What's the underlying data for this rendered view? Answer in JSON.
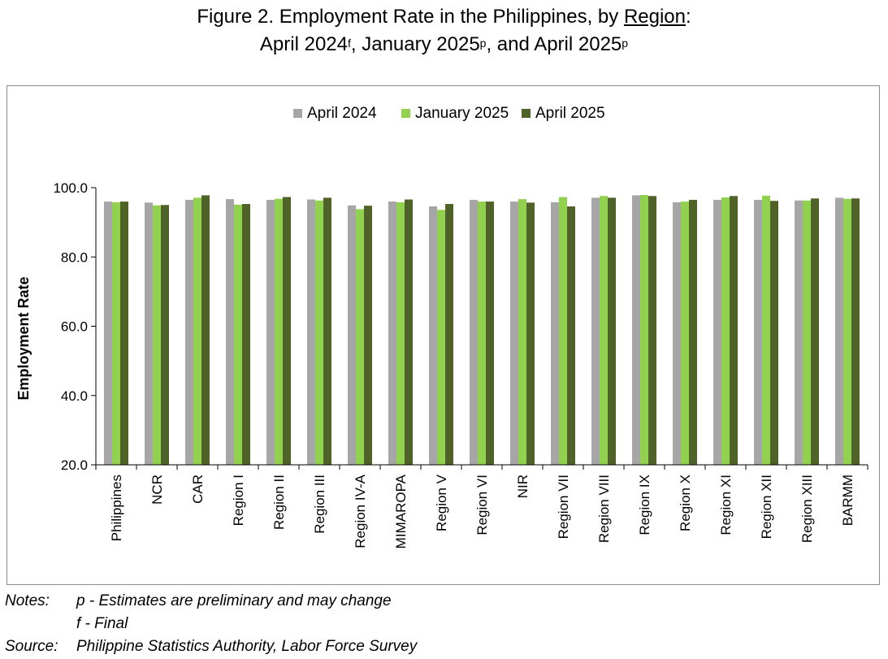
{
  "title": {
    "line1_prefix": "Figure 2. Employment Rate in the Philippines, by ",
    "line1_underlined": "Region",
    "line1_suffix": ":",
    "line2_part1": "April 2024",
    "line2_sup1": "f",
    "line2_part2": ", January 2025",
    "line2_sup2": "p",
    "line2_part3": ", and April 2025",
    "line2_sup3": "p"
  },
  "notes": {
    "label": "Notes:",
    "line1": "p - Estimates are preliminary and may change",
    "line2": "f - Final",
    "source_label": "Source:",
    "source": "Philippine Statistics Authority, Labor Force Survey"
  },
  "chart_data": {
    "type": "bar",
    "ylabel": "Employment Rate",
    "xlabel": "",
    "ylim": [
      20,
      100
    ],
    "yticks": [
      "20.0",
      "40.0",
      "60.0",
      "80.0",
      "100.0"
    ],
    "ytick_values": [
      20,
      40,
      60,
      80,
      100
    ],
    "grid": false,
    "legend_position": "top-center",
    "categories": [
      "Philippines",
      "NCR",
      "CAR",
      "Region I",
      "Region II",
      "Region III",
      "Region IV-A",
      "MIMAROPA",
      "Region V",
      "Region VI",
      "NIR",
      "Region VII",
      "Region VIII",
      "Region IX",
      "Region X",
      "Region XI",
      "Region XII",
      "Region XIII",
      "BARMM"
    ],
    "series": [
      {
        "name": "April 2024",
        "color": "#a6a6a6",
        "values": [
          96.0,
          95.7,
          96.5,
          96.7,
          96.5,
          96.6,
          94.9,
          96.0,
          94.6,
          96.5,
          96.0,
          95.8,
          97.1,
          97.8,
          95.8,
          96.5,
          96.5,
          96.3,
          97.1
        ]
      },
      {
        "name": "January 2025",
        "color": "#92d050",
        "values": [
          95.8,
          94.9,
          97.1,
          95.1,
          96.8,
          96.3,
          93.8,
          95.8,
          93.6,
          96.0,
          96.7,
          97.3,
          97.6,
          97.9,
          96.0,
          97.2,
          97.7,
          96.3,
          96.8
        ]
      },
      {
        "name": "April 2025",
        "color": "#4f6228",
        "values": [
          96.0,
          95.0,
          97.8,
          95.3,
          97.3,
          97.1,
          94.8,
          96.6,
          95.3,
          96.0,
          95.7,
          94.6,
          97.1,
          97.6,
          96.5,
          97.6,
          96.2,
          96.9,
          96.9
        ]
      }
    ]
  }
}
